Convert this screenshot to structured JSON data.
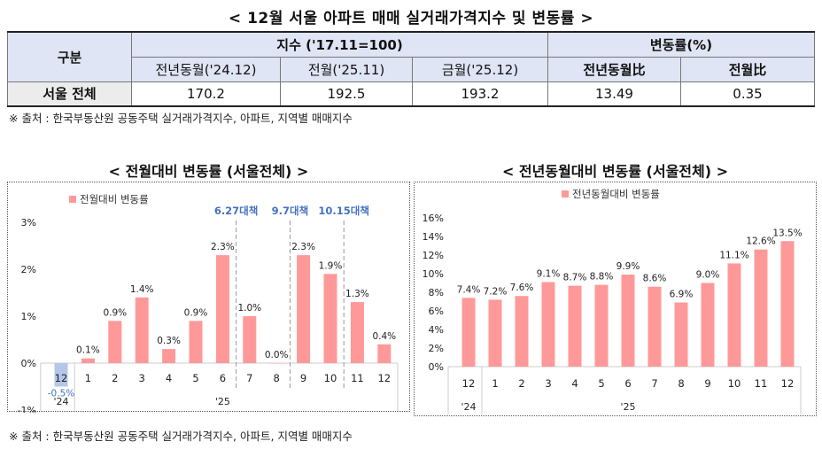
{
  "title": "< 12월 서울 아파트 매매 실거래가격지수 및 변동률 >",
  "table": {
    "corner": "구분",
    "group_index": "지수 ('17.11=100)",
    "group_change": "변동률(%)",
    "columns": [
      "전년동월('24.12)",
      "전월('25.11)",
      "금월('25.12)",
      "전년동월比",
      "전월比"
    ],
    "rows": [
      {
        "label": "서울 전체",
        "values": [
          "170.2",
          "192.5",
          "193.2",
          "13.49",
          "0.35"
        ]
      }
    ]
  },
  "source_note": "※ 출처 : 한국부동산원 공동주택 실거래가격지수, 아파트, 지역별 매매지수",
  "colors": {
    "bar": "#ff9999",
    "negative_bar": "#b4c7e7",
    "policy": "#4472c4"
  },
  "chart_data": [
    {
      "type": "bar",
      "title": "< 전월대비 변동률 (서울전체) >",
      "legend": "전월대비 변동률",
      "legend_position": "top-left",
      "categories": [
        "12",
        "1",
        "2",
        "3",
        "4",
        "5",
        "6",
        "7",
        "8",
        "9",
        "10",
        "11",
        "12"
      ],
      "year_labels": [
        {
          "label": "'24",
          "at": 0
        },
        {
          "label": "'25",
          "at": 6
        }
      ],
      "values": [
        -0.5,
        0.1,
        0.9,
        1.4,
        0.3,
        0.9,
        2.3,
        1.0,
        0.0,
        2.3,
        1.9,
        1.3,
        0.4
      ],
      "data_labels": [
        "-0.5%",
        "0.1%",
        "0.9%",
        "1.4%",
        "0.3%",
        "0.9%",
        "2.3%",
        "1.0%",
        "0.0%",
        "2.3%",
        "1.9%",
        "1.3%",
        "0.4%"
      ],
      "ylim": [
        -1,
        3
      ],
      "yticks": [
        "-1%",
        "0%",
        "1%",
        "2%",
        "3%"
      ],
      "annotations": [
        {
          "label": "6.27대책",
          "after": 6
        },
        {
          "label": "9.7대책",
          "after": 8
        },
        {
          "label": "10.15대책",
          "after": 10
        }
      ]
    },
    {
      "type": "bar",
      "title": "< 전년동월대비 변동률 (서울전체) >",
      "legend": "전년동월대비 변동률",
      "legend_position": "top",
      "categories": [
        "12",
        "1",
        "2",
        "3",
        "4",
        "5",
        "6",
        "7",
        "8",
        "9",
        "10",
        "11",
        "12"
      ],
      "year_labels": [
        {
          "label": "'24",
          "at": 0
        },
        {
          "label": "'25",
          "at": 6
        }
      ],
      "values": [
        7.4,
        7.2,
        7.6,
        9.1,
        8.7,
        8.8,
        9.9,
        8.6,
        6.9,
        9.0,
        11.1,
        12.6,
        13.5
      ],
      "data_labels": [
        "7.4%",
        "7.2%",
        "7.6%",
        "9.1%",
        "8.7%",
        "8.8%",
        "9.9%",
        "8.6%",
        "6.9%",
        "9.0%",
        "11.1%",
        "12.6%",
        "13.5%"
      ],
      "ylim": [
        0,
        16
      ],
      "yticks": [
        "0%",
        "2%",
        "4%",
        "6%",
        "8%",
        "10%",
        "12%",
        "14%",
        "16%"
      ]
    }
  ]
}
